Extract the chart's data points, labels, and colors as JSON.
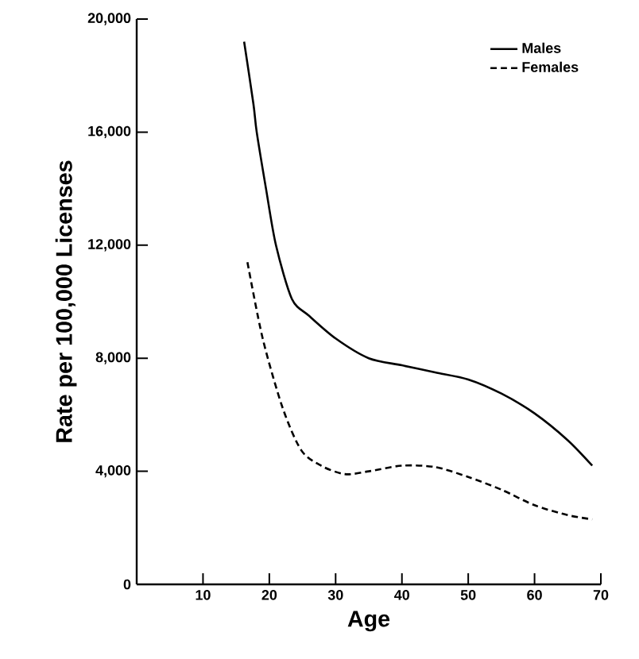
{
  "chart_data": {
    "type": "line",
    "xlabel": "Age",
    "ylabel": "Rate per 100,000 Licenses",
    "xlim": [
      0,
      70
    ],
    "ylim": [
      0,
      20000
    ],
    "xticks": [
      10,
      20,
      30,
      40,
      50,
      60,
      70
    ],
    "yticks": [
      {
        "value": 0,
        "label": "0"
      },
      {
        "value": 4000,
        "label": "4,000"
      },
      {
        "value": 8000,
        "label": "8,000"
      },
      {
        "value": 12000,
        "label": "12,000"
      },
      {
        "value": 16000,
        "label": "16,000"
      },
      {
        "value": 20000,
        "label": "20,000"
      }
    ],
    "legend": "top right",
    "grid": false,
    "series": [
      {
        "name": "Males",
        "color": "#000000",
        "line_style": "solid",
        "x": [
          16.2,
          17.6,
          18.1,
          19.5,
          21,
          23.4,
          26,
          30,
          35,
          40,
          45,
          50,
          55,
          60,
          65,
          68.7
        ],
        "values": [
          19200,
          17000,
          16000,
          14000,
          12000,
          10100,
          9500,
          8700,
          8000,
          7750,
          7500,
          7250,
          6750,
          6050,
          5100,
          4200
        ]
      },
      {
        "name": "Females",
        "color": "#000000",
        "line_style": "dashed",
        "x": [
          16.7,
          19,
          22,
          24.8,
          27.8,
          31.4,
          35,
          40,
          45,
          50,
          55,
          60,
          65,
          68.7
        ],
        "values": [
          11400,
          8700,
          6250,
          4750,
          4200,
          3900,
          4000,
          4200,
          4150,
          3800,
          3350,
          2800,
          2450,
          2300
        ]
      }
    ]
  }
}
